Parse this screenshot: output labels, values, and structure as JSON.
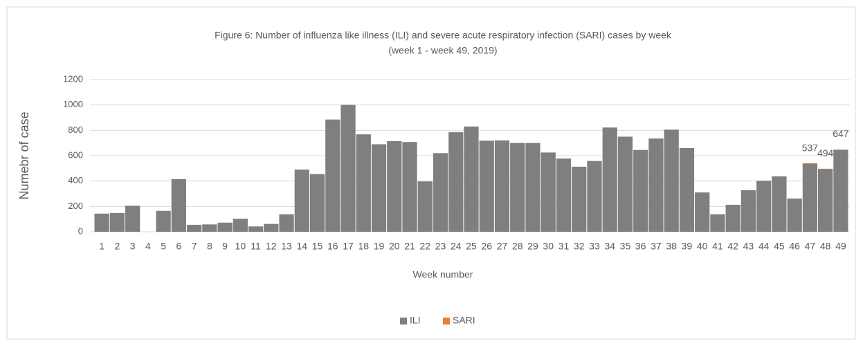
{
  "chart_data": {
    "type": "bar",
    "title": "Figure 6: Number of influenza like illness (ILI) and severe acute respiratory infection (SARI) cases by week",
    "subtitle": "(week 1 - week 49, 2019)",
    "x_label": "Week number",
    "y_label": "Numebr of case",
    "categories": [
      "1",
      "2",
      "3",
      "4",
      "5",
      "6",
      "7",
      "8",
      "9",
      "10",
      "11",
      "12",
      "13",
      "14",
      "15",
      "16",
      "17",
      "18",
      "19",
      "20",
      "21",
      "22",
      "23",
      "24",
      "25",
      "26",
      "27",
      "28",
      "29",
      "30",
      "31",
      "32",
      "33",
      "34",
      "35",
      "36",
      "37",
      "38",
      "39",
      "40",
      "41",
      "42",
      "43",
      "44",
      "45",
      "46",
      "47",
      "48",
      "49"
    ],
    "series": [
      {
        "name": "ILI",
        "color": "#7f7f7f",
        "values": [
          143,
          148,
          205,
          0,
          165,
          415,
          55,
          58,
          72,
          103,
          42,
          62,
          138,
          490,
          455,
          885,
          1000,
          768,
          690,
          715,
          708,
          397,
          620,
          785,
          830,
          718,
          720,
          700,
          700,
          625,
          577,
          513,
          558,
          822,
          750,
          645,
          735,
          805,
          660,
          310,
          138,
          213,
          328,
          402,
          437,
          262,
          537,
          494,
          647
        ]
      },
      {
        "name": "SARI",
        "color": "#ed7d31",
        "values": [
          0,
          0,
          0,
          0,
          0,
          0,
          0,
          0,
          0,
          0,
          0,
          0,
          0,
          0,
          0,
          0,
          0,
          0,
          0,
          0,
          0,
          0,
          0,
          0,
          0,
          0,
          0,
          0,
          0,
          0,
          0,
          0,
          0,
          0,
          0,
          0,
          0,
          0,
          0,
          0,
          0,
          0,
          0,
          0,
          0,
          0,
          3,
          3,
          0
        ]
      }
    ],
    "data_labels": [
      "47",
      "48",
      "49"
    ],
    "ylim": [
      0,
      1200
    ],
    "yticks": [
      0,
      200,
      400,
      600,
      800,
      1000,
      1200
    ],
    "grid": true,
    "legend": "bottom"
  }
}
